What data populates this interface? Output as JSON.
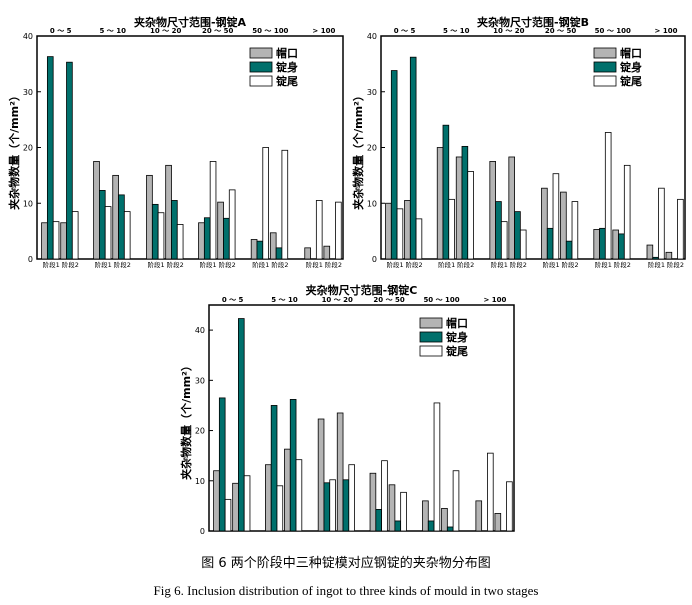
{
  "chart_data": [
    {
      "type": "bar",
      "title": "夹杂物尺寸范围-钢锭A",
      "ylabel": "夹杂物数量（个/mm²）",
      "ylim": [
        0,
        40
      ],
      "yticks": [
        0,
        10,
        20,
        30,
        40
      ],
      "size_ranges": [
        "0 ～ 5",
        "5 ～ 10",
        "10 ～ 20",
        "20 ～ 50",
        "50 ～ 100",
        "> 100"
      ],
      "x_labels": [
        "阶段1",
        "阶段2"
      ],
      "legend_position": "top-right",
      "series": [
        {
          "name": "帽口",
          "color": "#b4b4b4",
          "values": [
            [
              6.5,
              6.5
            ],
            [
              17.5,
              15
            ],
            [
              15,
              16.8
            ],
            [
              6.5,
              10.2
            ],
            [
              3.5,
              4.7
            ],
            [
              2,
              2.3
            ]
          ]
        },
        {
          "name": "锭身",
          "color": "#00706c",
          "values": [
            [
              36.3,
              35.3
            ],
            [
              12.3,
              11.5
            ],
            [
              9.8,
              10.5
            ],
            [
              7.4,
              7.3
            ],
            [
              3.2,
              2.0
            ],
            [
              0,
              0
            ]
          ]
        },
        {
          "name": "锭尾",
          "color": "#ffffff",
          "values": [
            [
              6.7,
              8.5
            ],
            [
              9.4,
              8.5
            ],
            [
              8.3,
              6.2
            ],
            [
              17.5,
              12.4
            ],
            [
              20,
              19.5
            ],
            [
              10.5,
              10.2
            ]
          ]
        }
      ]
    },
    {
      "type": "bar",
      "title": "夹杂物尺寸范围-钢锭B",
      "ylabel": "夹杂物数量（个/mm²）",
      "ylim": [
        0,
        40
      ],
      "yticks": [
        0,
        10,
        20,
        30,
        40
      ],
      "size_ranges": [
        "0 ～ 5",
        "5 ～ 10",
        "10 ～ 20",
        "20 ～ 50",
        "50 ～ 100",
        "> 100"
      ],
      "x_labels": [
        "阶段1",
        "阶段2"
      ],
      "legend_position": "top-right",
      "series": [
        {
          "name": "帽口",
          "color": "#b4b4b4",
          "values": [
            [
              10,
              10.5
            ],
            [
              20,
              18.3
            ],
            [
              17.5,
              18.3
            ],
            [
              12.7,
              12
            ],
            [
              5.3,
              5.2
            ],
            [
              2.5,
              1.2
            ]
          ]
        },
        {
          "name": "锭身",
          "color": "#00706c",
          "values": [
            [
              33.8,
              36.2
            ],
            [
              24,
              20.2
            ],
            [
              10.3,
              8.5
            ],
            [
              5.5,
              3.2
            ],
            [
              5.5,
              4.5
            ],
            [
              0.3,
              0
            ]
          ]
        },
        {
          "name": "锭尾",
          "color": "#ffffff",
          "values": [
            [
              9,
              7.2
            ],
            [
              10.7,
              15.7
            ],
            [
              6.7,
              5.2
            ],
            [
              15.3,
              10.3
            ],
            [
              22.7,
              16.8
            ],
            [
              12.7,
              10.7
            ]
          ]
        }
      ]
    },
    {
      "type": "bar",
      "title": "夹杂物尺寸范围-钢锭C",
      "ylabel": "夹杂物数量（个/mm²）",
      "ylim": [
        0,
        45
      ],
      "yticks": [
        0,
        10,
        20,
        30,
        40
      ],
      "size_ranges": [
        "0 ～ 5",
        "5 ～ 10",
        "10 ～ 20",
        "20 ～ 50",
        "50 ～ 100",
        "> 100"
      ],
      "x_labels": [],
      "legend_position": "top-right",
      "series": [
        {
          "name": "帽口",
          "color": "#b4b4b4",
          "values": [
            [
              12,
              9.5
            ],
            [
              13.2,
              16.3
            ],
            [
              22.3,
              23.5
            ],
            [
              11.5,
              9.2
            ],
            [
              6,
              4.5
            ],
            [
              6,
              3.5
            ]
          ]
        },
        {
          "name": "锭身",
          "color": "#00706c",
          "values": [
            [
              26.5,
              42.3
            ],
            [
              25,
              26.2
            ],
            [
              9.6,
              10.2
            ],
            [
              4.3,
              2
            ],
            [
              2,
              0.8
            ],
            [
              0,
              0
            ]
          ]
        },
        {
          "name": "锭尾",
          "color": "#ffffff",
          "values": [
            [
              6.3,
              11
            ],
            [
              9,
              14.2
            ],
            [
              10.2,
              13.2
            ],
            [
              14,
              7.7
            ],
            [
              25.5,
              12
            ],
            [
              15.5,
              9.8
            ]
          ]
        }
      ]
    }
  ],
  "captions": {
    "zh": "图 6  两个阶段中三种锭模对应钢锭的夹杂物分布图",
    "en": "Fig 6. Inclusion distribution of ingot to three kinds of mould in two stages"
  }
}
